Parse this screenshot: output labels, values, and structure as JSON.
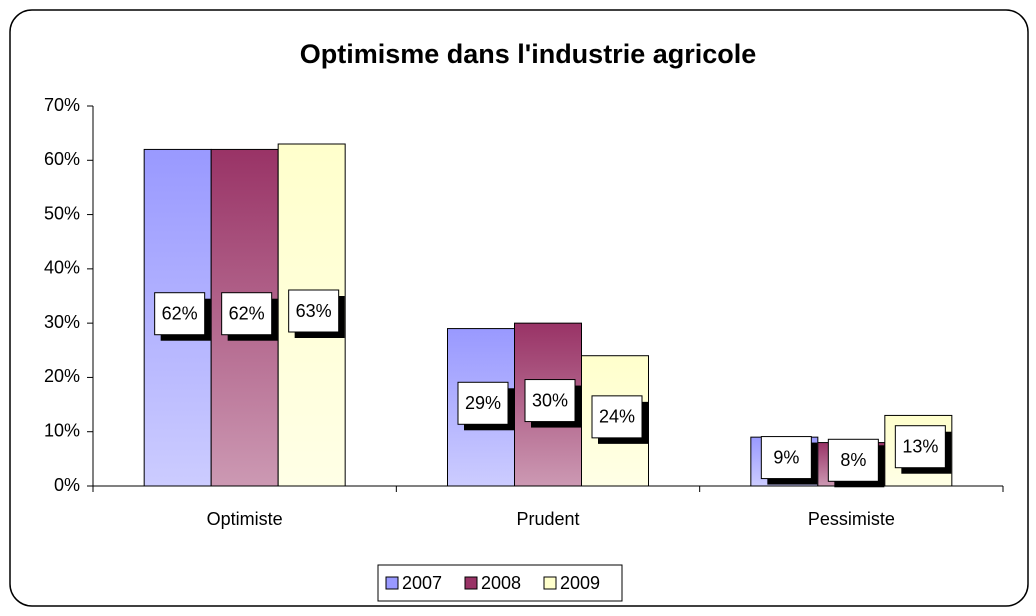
{
  "chart_data": {
    "type": "bar",
    "title": "Optimisme dans l'industrie agricole",
    "categories": [
      "Optimiste",
      "Prudent",
      "Pessimiste"
    ],
    "series": [
      {
        "name": "2007",
        "color": "#9999ff",
        "values": [
          62,
          29,
          9
        ],
        "value_labels": [
          "62%",
          "29%",
          "9%"
        ]
      },
      {
        "name": "2008",
        "color": "#993366",
        "values": [
          62,
          30,
          8
        ],
        "value_labels": [
          "62%",
          "30%",
          "8%"
        ]
      },
      {
        "name": "2009",
        "color": "#ffffcc",
        "values": [
          63,
          24,
          13
        ],
        "value_labels": [
          "63%",
          "24%",
          "13%"
        ]
      }
    ],
    "ylim": [
      0,
      70
    ],
    "yticks": [
      {
        "value": 0,
        "label": "0%"
      },
      {
        "value": 10,
        "label": "10%"
      },
      {
        "value": 20,
        "label": "20%"
      },
      {
        "value": 30,
        "label": "30%"
      },
      {
        "value": 40,
        "label": "40%"
      },
      {
        "value": 50,
        "label": "50%"
      },
      {
        "value": 60,
        "label": "60%"
      },
      {
        "value": 70,
        "label": "70%"
      }
    ],
    "legend": "bottom"
  }
}
